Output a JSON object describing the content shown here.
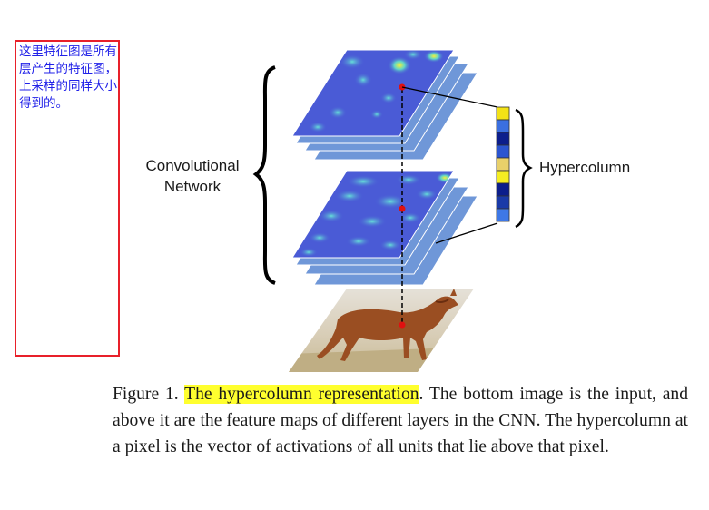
{
  "note": {
    "text": "这里特征图是所有层产生的特征图，上采样的同样大小得到的。",
    "border_color": "#e8202a",
    "text_color": "#2020e8"
  },
  "figure": {
    "left_label_line1": "Convolutional",
    "left_label_line2": "Network",
    "right_label": "Hypercolumn",
    "hypercolumn_colors": [
      "#f3e216",
      "#3b6fe0",
      "#0c1e8c",
      "#2b55d0",
      "#e8d06a",
      "#f5ee22",
      "#0c1e8c",
      "#1a3aa8",
      "#3e78e6"
    ]
  },
  "caption": {
    "prefix": "Figure 1. ",
    "highlight": "The hypercolumn representation",
    "rest": ".  The bottom image is the input, and above it are the feature maps of different layers in the CNN. The hypercolumn at a pixel is the vector of activations of all units that lie above that pixel.",
    "highlight_color": "#ffff2e"
  }
}
